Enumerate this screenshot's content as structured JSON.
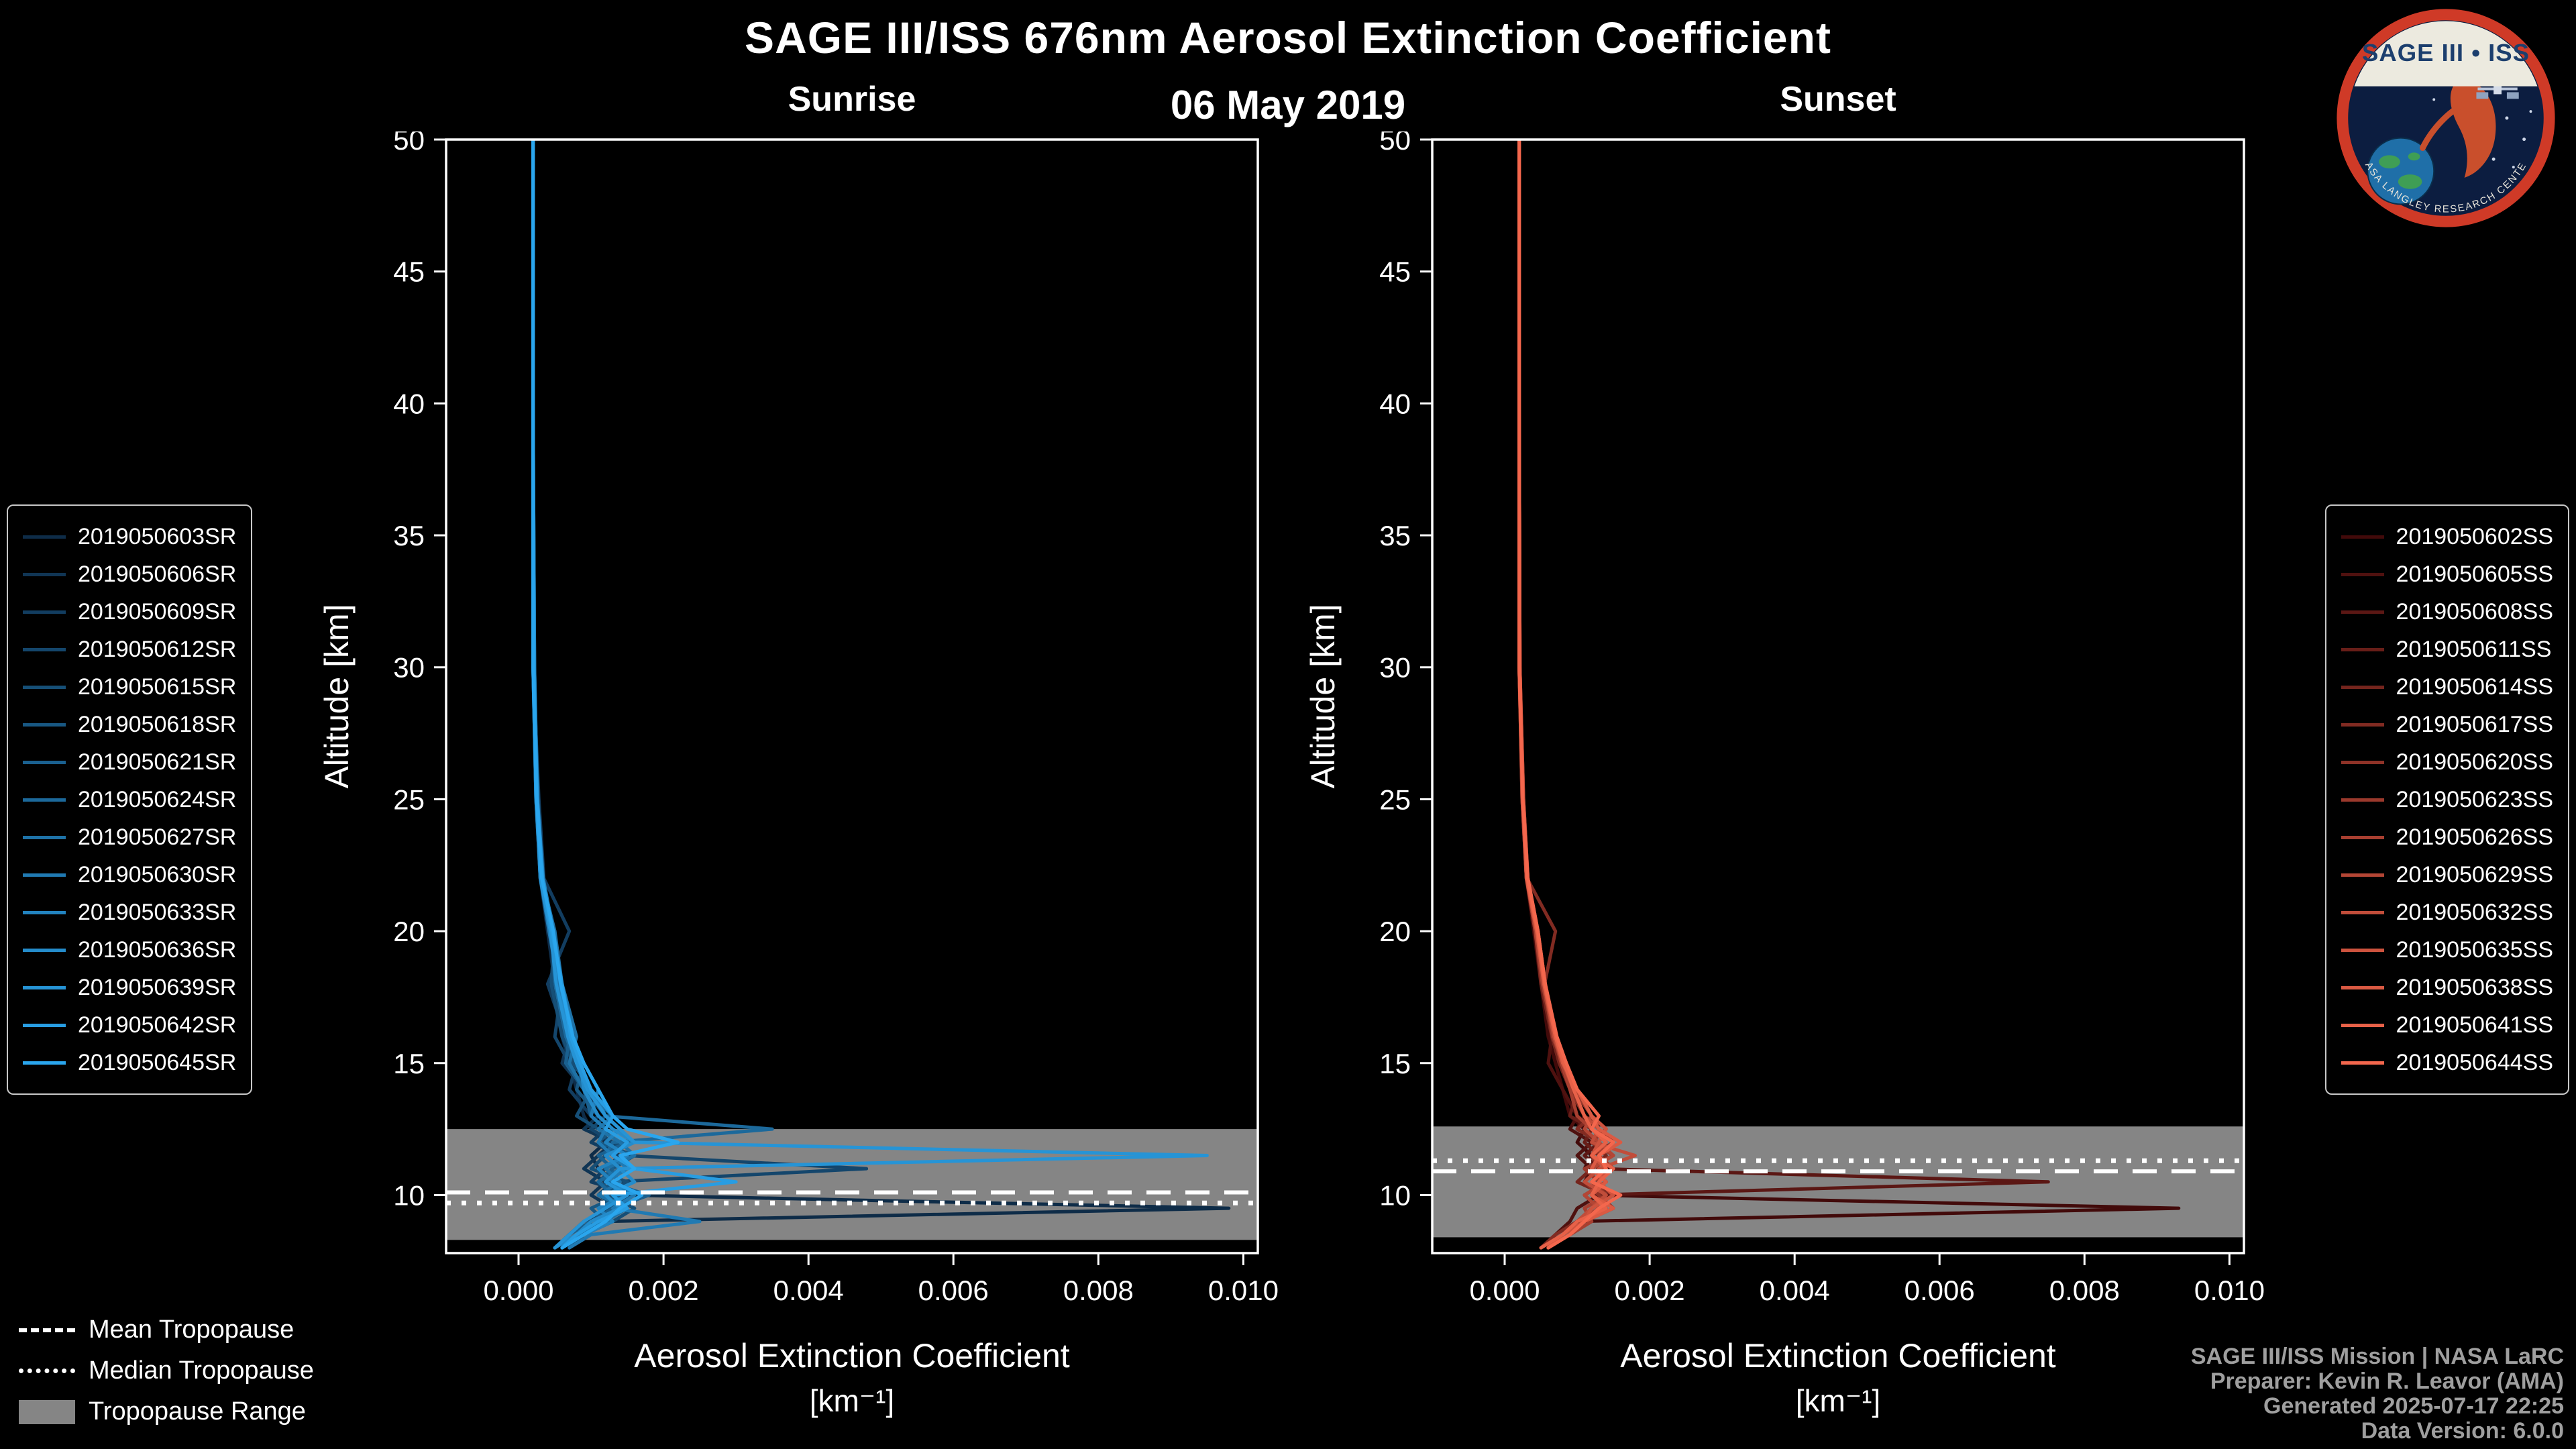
{
  "header": {
    "title": "SAGE III/ISS 676nm Aerosol Extinction Coefficient",
    "date": "06 May 2019"
  },
  "logo": {
    "title": "SAGE III • ISS",
    "arc_text": "NASA LANGLEY RESEARCH CENTER"
  },
  "colors": {
    "background": "#000000",
    "text": "#ffffff",
    "credits": "#9f9f9f",
    "tropopause_band": "#858585",
    "tropopause_line": "#ffffff"
  },
  "tropopause_legend": [
    {
      "label": "Mean Tropopause",
      "style": "dashed"
    },
    {
      "label": "Median Tropopause",
      "style": "dotted"
    },
    {
      "label": "Tropopause Range",
      "style": "band"
    }
  ],
  "footer": {
    "credits": [
      "SAGE III/ISS Mission | NASA LaRC",
      "Preparer: Kevin R. Leavor (AMA)",
      "Generated 2025-07-17 22:25",
      "Data Version: 6.0.0"
    ]
  },
  "chart_data": [
    {
      "type": "line",
      "title": "Sunrise",
      "xlabel": "Aerosol Extinction Coefficient",
      "xunits": "[km⁻¹]",
      "ylabel": "Altitude [km]",
      "xlim": [
        -0.001,
        0.0102
      ],
      "ylim": [
        7.8,
        50
      ],
      "xticks": [
        0,
        0.002,
        0.004,
        0.006,
        0.008,
        0.01
      ],
      "xtick_labels": [
        "0.000",
        "0.002",
        "0.004",
        "0.006",
        "0.008",
        "0.010"
      ],
      "yticks": [
        10,
        15,
        20,
        25,
        30,
        35,
        40,
        45,
        50
      ],
      "ytick_labels": [
        "10",
        "15",
        "20",
        "25",
        "30",
        "35",
        "40",
        "45",
        "50"
      ],
      "altitudes": [
        50,
        40,
        30,
        25,
        22,
        20,
        18,
        16,
        15,
        14,
        13,
        12.5,
        12,
        11.5,
        11,
        10.5,
        10,
        9.5,
        9,
        8.5,
        8
      ],
      "tropopause": {
        "mean": 10.1,
        "median": 9.7,
        "range": [
          8.3,
          12.5
        ]
      },
      "series": [
        {
          "name": "2019050603SR",
          "color": "#0e2c48",
          "values": [
            0.0002,
            0.0002,
            0.0002,
            0.00024,
            0.0003,
            0.0004,
            0.0005,
            0.0006,
            0.0007,
            0.0008,
            0.0009,
            0.001,
            0.0012,
            0.001,
            0.0011,
            0.0013,
            0.0015,
            0.0098,
            0.0012,
            0.0008,
            0.0006
          ]
        },
        {
          "name": "2019050606SR",
          "color": "#103554",
          "values": [
            0.0002,
            0.0002,
            0.00021,
            0.00025,
            0.00031,
            0.00045,
            0.00055,
            0.0007,
            0.0006,
            0.0009,
            0.0011,
            0.0009,
            0.0013,
            0.0011,
            0.0009,
            0.0012,
            0.001,
            0.0013,
            0.0009,
            0.0007,
            0.0005
          ]
        },
        {
          "name": "2019050609SR",
          "color": "#123d60",
          "values": [
            0.0002,
            0.0002,
            0.0002,
            0.00028,
            0.00035,
            0.0007,
            0.0004,
            0.00065,
            0.0008,
            0.0007,
            0.001,
            0.0012,
            0.001,
            0.0014,
            0.0012,
            0.001,
            0.0016,
            0.0012,
            0.001,
            0.0009,
            0.0006
          ]
        },
        {
          "name": "2019050612SR",
          "color": "#14466c",
          "values": [
            0.0002,
            0.0002,
            0.00022,
            0.00026,
            0.00032,
            0.00042,
            0.0006,
            0.0005,
            0.0007,
            0.0009,
            0.0012,
            0.001,
            0.0013,
            0.0015,
            0.0048,
            0.0013,
            0.0011,
            0.0014,
            0.0011,
            0.0008,
            0.0005
          ]
        },
        {
          "name": "2019050615SR",
          "color": "#164f77",
          "values": [
            0.0002,
            0.0002,
            0.0002,
            0.00024,
            0.0003,
            0.0005,
            0.00045,
            0.0006,
            0.00075,
            0.001,
            0.0008,
            0.0011,
            0.0014,
            0.0012,
            0.001,
            0.0015,
            0.0012,
            0.0016,
            0.0013,
            0.0009,
            0.0007
          ]
        },
        {
          "name": "2019050618SR",
          "color": "#185883",
          "values": [
            0.0002,
            0.0002,
            0.00021,
            0.00027,
            0.00033,
            0.00048,
            0.0006,
            0.00075,
            0.0009,
            0.0008,
            0.0011,
            0.0013,
            0.0011,
            0.0016,
            0.0013,
            0.0011,
            0.0014,
            0.001,
            0.0012,
            0.0008,
            0.0006
          ]
        },
        {
          "name": "2019050621SR",
          "color": "#1a608f",
          "values": [
            0.0002,
            0.0002,
            0.0002,
            0.00025,
            0.00031,
            0.00044,
            0.00055,
            0.0007,
            0.00065,
            0.0009,
            0.001,
            0.0012,
            0.0015,
            0.0011,
            0.0013,
            0.0012,
            0.0018,
            0.0013,
            0.001,
            0.0007,
            0.0005
          ]
        },
        {
          "name": "2019050624SR",
          "color": "#1c699b",
          "values": [
            0.0002,
            0.0002,
            0.00022,
            0.00026,
            0.0003,
            0.00046,
            0.0005,
            0.00065,
            0.0008,
            0.001,
            0.0012,
            0.0035,
            0.0013,
            0.0012,
            0.0014,
            0.0011,
            0.0013,
            0.0015,
            0.0011,
            0.0009,
            0.0006
          ]
        },
        {
          "name": "2019050627SR",
          "color": "#1e72a7",
          "values": [
            0.0002,
            0.0002,
            0.0002,
            0.00024,
            0.00032,
            0.0005,
            0.0006,
            0.0008,
            0.0007,
            0.0009,
            0.0013,
            0.0011,
            0.0014,
            0.0016,
            0.0012,
            0.0014,
            0.0011,
            0.0015,
            0.0012,
            0.0008,
            0.0006
          ]
        },
        {
          "name": "2019050630SR",
          "color": "#207ab3",
          "values": [
            0.0002,
            0.0002,
            0.00021,
            0.00025,
            0.0003,
            0.00042,
            0.00055,
            0.0007,
            0.0009,
            0.0011,
            0.001,
            0.0012,
            0.0011,
            0.0013,
            0.0015,
            0.0012,
            0.0016,
            0.0013,
            0.0025,
            0.001,
            0.0007
          ]
        },
        {
          "name": "2019050633SR",
          "color": "#2283bf",
          "values": [
            0.0002,
            0.0002,
            0.0002,
            0.00026,
            0.00034,
            0.00048,
            0.0006,
            0.00075,
            0.0008,
            0.001,
            0.0012,
            0.0014,
            0.0012,
            0.0015,
            0.0011,
            0.0013,
            0.0015,
            0.0011,
            0.0013,
            0.0009,
            0.0006
          ]
        },
        {
          "name": "2019050636SR",
          "color": "#248ccb",
          "values": [
            0.0002,
            0.0002,
            0.00022,
            0.00025,
            0.00031,
            0.00045,
            0.00058,
            0.0007,
            0.00085,
            0.0009,
            0.0011,
            0.0013,
            0.0016,
            0.0012,
            0.0014,
            0.0016,
            0.0012,
            0.0014,
            0.001,
            0.0008,
            0.0005
          ]
        },
        {
          "name": "2019050639SR",
          "color": "#2694d6",
          "values": [
            0.0002,
            0.0002,
            0.0002,
            0.00024,
            0.0003,
            0.00044,
            0.00052,
            0.00068,
            0.0008,
            0.00095,
            0.0012,
            0.0014,
            0.0016,
            0.0095,
            0.0014,
            0.0012,
            0.0015,
            0.0012,
            0.0009,
            0.0007,
            0.0005
          ]
        },
        {
          "name": "2019050642SR",
          "color": "#289de2",
          "values": [
            0.0002,
            0.0002,
            0.00021,
            0.00026,
            0.00033,
            0.00046,
            0.0006,
            0.00072,
            0.00085,
            0.001,
            0.0013,
            0.0012,
            0.0015,
            0.0013,
            0.0016,
            0.003,
            0.0013,
            0.0015,
            0.0011,
            0.0008,
            0.0006
          ]
        },
        {
          "name": "2019050645SR",
          "color": "#2aa6ee",
          "values": [
            0.0002,
            0.0002,
            0.0002,
            0.00025,
            0.00032,
            0.00048,
            0.00058,
            0.00075,
            0.0009,
            0.0011,
            0.0013,
            0.0015,
            0.0022,
            0.0014,
            0.0016,
            0.0013,
            0.0017,
            0.0014,
            0.0012,
            0.0009,
            0.0006
          ]
        }
      ]
    },
    {
      "type": "line",
      "title": "Sunset",
      "xlabel": "Aerosol Extinction Coefficient",
      "xunits": "[km⁻¹]",
      "ylabel": "Altitude [km]",
      "xlim": [
        -0.001,
        0.0102
      ],
      "ylim": [
        7.8,
        50
      ],
      "xticks": [
        0,
        0.002,
        0.004,
        0.006,
        0.008,
        0.01
      ],
      "xtick_labels": [
        "0.000",
        "0.002",
        "0.004",
        "0.006",
        "0.008",
        "0.010"
      ],
      "yticks": [
        10,
        15,
        20,
        25,
        30,
        35,
        40,
        45,
        50
      ],
      "ytick_labels": [
        "10",
        "15",
        "20",
        "25",
        "30",
        "35",
        "40",
        "45",
        "50"
      ],
      "altitudes": [
        50,
        40,
        30,
        25,
        22,
        20,
        18,
        16,
        15,
        14,
        13,
        12.5,
        12,
        11.5,
        11,
        10.5,
        10,
        9.5,
        9,
        8.5,
        8
      ],
      "tropopause": {
        "mean": 10.9,
        "median": 11.3,
        "range": [
          8.4,
          12.6
        ]
      },
      "series": [
        {
          "name": "2019050602SS",
          "color": "#420a0a",
          "values": [
            0.0002,
            0.0002,
            0.0002,
            0.00024,
            0.0003,
            0.0004,
            0.0005,
            0.0006,
            0.0007,
            0.0008,
            0.0009,
            0.0011,
            0.001,
            0.0012,
            0.0011,
            0.0013,
            0.0012,
            0.0093,
            0.001,
            0.0008,
            0.0006
          ]
        },
        {
          "name": "2019050605SS",
          "color": "#4f110f",
          "values": [
            0.0002,
            0.0002,
            0.00021,
            0.00025,
            0.00031,
            0.00042,
            0.00052,
            0.00065,
            0.0006,
            0.0008,
            0.001,
            0.0009,
            0.0012,
            0.001,
            0.0012,
            0.0011,
            0.0013,
            0.001,
            0.0009,
            0.0007,
            0.0005
          ]
        },
        {
          "name": "2019050608SS",
          "color": "#5b1714",
          "values": [
            0.0002,
            0.0002,
            0.0002,
            0.00024,
            0.0003,
            0.00044,
            0.00054,
            0.0007,
            0.0008,
            0.0009,
            0.0011,
            0.001,
            0.0013,
            0.0011,
            0.0013,
            0.0075,
            0.0012,
            0.0014,
            0.001,
            0.0008,
            0.0005
          ]
        },
        {
          "name": "2019050611SS",
          "color": "#681e18",
          "values": [
            0.0002,
            0.0002,
            0.00021,
            0.00026,
            0.00032,
            0.00046,
            0.00056,
            0.0007,
            0.00085,
            0.001,
            0.0009,
            0.0012,
            0.0011,
            0.0013,
            0.0012,
            0.0014,
            0.0011,
            0.0013,
            0.0011,
            0.0008,
            0.0006
          ]
        },
        {
          "name": "2019050614SS",
          "color": "#75251d",
          "values": [
            0.0002,
            0.0002,
            0.0002,
            0.00025,
            0.0003,
            0.00042,
            0.0005,
            0.00065,
            0.00075,
            0.0009,
            0.0011,
            0.0013,
            0.0012,
            0.0014,
            0.0012,
            0.001,
            0.0014,
            0.0011,
            0.0012,
            0.0009,
            0.0006
          ]
        },
        {
          "name": "2019050617SS",
          "color": "#822b22",
          "values": [
            0.0002,
            0.0002,
            0.00021,
            0.00025,
            0.00031,
            0.0007,
            0.00055,
            0.00068,
            0.0008,
            0.001,
            0.0012,
            0.001,
            0.0013,
            0.0012,
            0.0014,
            0.0012,
            0.0015,
            0.0012,
            0.001,
            0.0007,
            0.0005
          ]
        },
        {
          "name": "2019050620SS",
          "color": "#8e3227",
          "values": [
            0.0002,
            0.0002,
            0.0002,
            0.00024,
            0.0003,
            0.00046,
            0.00056,
            0.0007,
            0.00082,
            0.0009,
            0.0011,
            0.0013,
            0.0015,
            0.0012,
            0.0013,
            0.0011,
            0.0013,
            0.0015,
            0.0011,
            0.0008,
            0.0006
          ]
        },
        {
          "name": "2019050623SS",
          "color": "#9b392c",
          "values": [
            0.0002,
            0.0002,
            0.00021,
            0.00026,
            0.00032,
            0.00044,
            0.00054,
            0.00066,
            0.0008,
            0.00095,
            0.0012,
            0.0014,
            0.0012,
            0.0015,
            0.0011,
            0.0013,
            0.0012,
            0.0014,
            0.001,
            0.0008,
            0.0005
          ]
        },
        {
          "name": "2019050626SS",
          "color": "#a83f30",
          "values": [
            0.0002,
            0.0002,
            0.0002,
            0.00025,
            0.0003,
            0.00042,
            0.00052,
            0.00068,
            0.00078,
            0.0009,
            0.001,
            0.0012,
            0.0014,
            0.0013,
            0.0015,
            0.0012,
            0.0014,
            0.0011,
            0.0012,
            0.0009,
            0.0006
          ]
        },
        {
          "name": "2019050629SS",
          "color": "#b44635",
          "values": [
            0.0002,
            0.0002,
            0.00021,
            0.00025,
            0.00031,
            0.00045,
            0.00055,
            0.0007,
            0.0008,
            0.001,
            0.0012,
            0.0011,
            0.0013,
            0.0015,
            0.0012,
            0.0014,
            0.0011,
            0.0013,
            0.001,
            0.0008,
            0.0006
          ]
        },
        {
          "name": "2019050632SS",
          "color": "#c14d3a",
          "values": [
            0.0002,
            0.0002,
            0.0002,
            0.00024,
            0.0003,
            0.00044,
            0.00054,
            0.00068,
            0.0008,
            0.00095,
            0.0011,
            0.0013,
            0.0012,
            0.0018,
            0.0013,
            0.0011,
            0.0014,
            0.0012,
            0.001,
            0.0008,
            0.0005
          ]
        },
        {
          "name": "2019050635SS",
          "color": "#ce533e",
          "values": [
            0.0002,
            0.0002,
            0.00021,
            0.00026,
            0.00032,
            0.00046,
            0.00056,
            0.00072,
            0.00085,
            0.001,
            0.0012,
            0.0014,
            0.0013,
            0.0012,
            0.0014,
            0.0013,
            0.0015,
            0.0012,
            0.0011,
            0.0008,
            0.0006
          ]
        },
        {
          "name": "2019050638SS",
          "color": "#db5a43",
          "values": [
            0.0002,
            0.0002,
            0.0002,
            0.00025,
            0.0003,
            0.00044,
            0.00054,
            0.0007,
            0.0008,
            0.001,
            0.0012,
            0.0013,
            0.0016,
            0.0013,
            0.0012,
            0.0014,
            0.0012,
            0.0015,
            0.0011,
            0.0009,
            0.0006
          ]
        },
        {
          "name": "2019050641SS",
          "color": "#e76148",
          "values": [
            0.0002,
            0.0002,
            0.00021,
            0.00025,
            0.00031,
            0.00045,
            0.00055,
            0.0007,
            0.00082,
            0.00095,
            0.0011,
            0.0012,
            0.0014,
            0.0012,
            0.0015,
            0.0013,
            0.0012,
            0.0014,
            0.001,
            0.0008,
            0.0005
          ]
        },
        {
          "name": "2019050644SS",
          "color": "#f4674d",
          "values": [
            0.0002,
            0.0002,
            0.0002,
            0.00025,
            0.00032,
            0.00046,
            0.00056,
            0.00072,
            0.00085,
            0.001,
            0.0013,
            0.0012,
            0.0015,
            0.0013,
            0.0014,
            0.0012,
            0.0016,
            0.0013,
            0.0011,
            0.0009,
            0.0006
          ]
        }
      ]
    }
  ]
}
